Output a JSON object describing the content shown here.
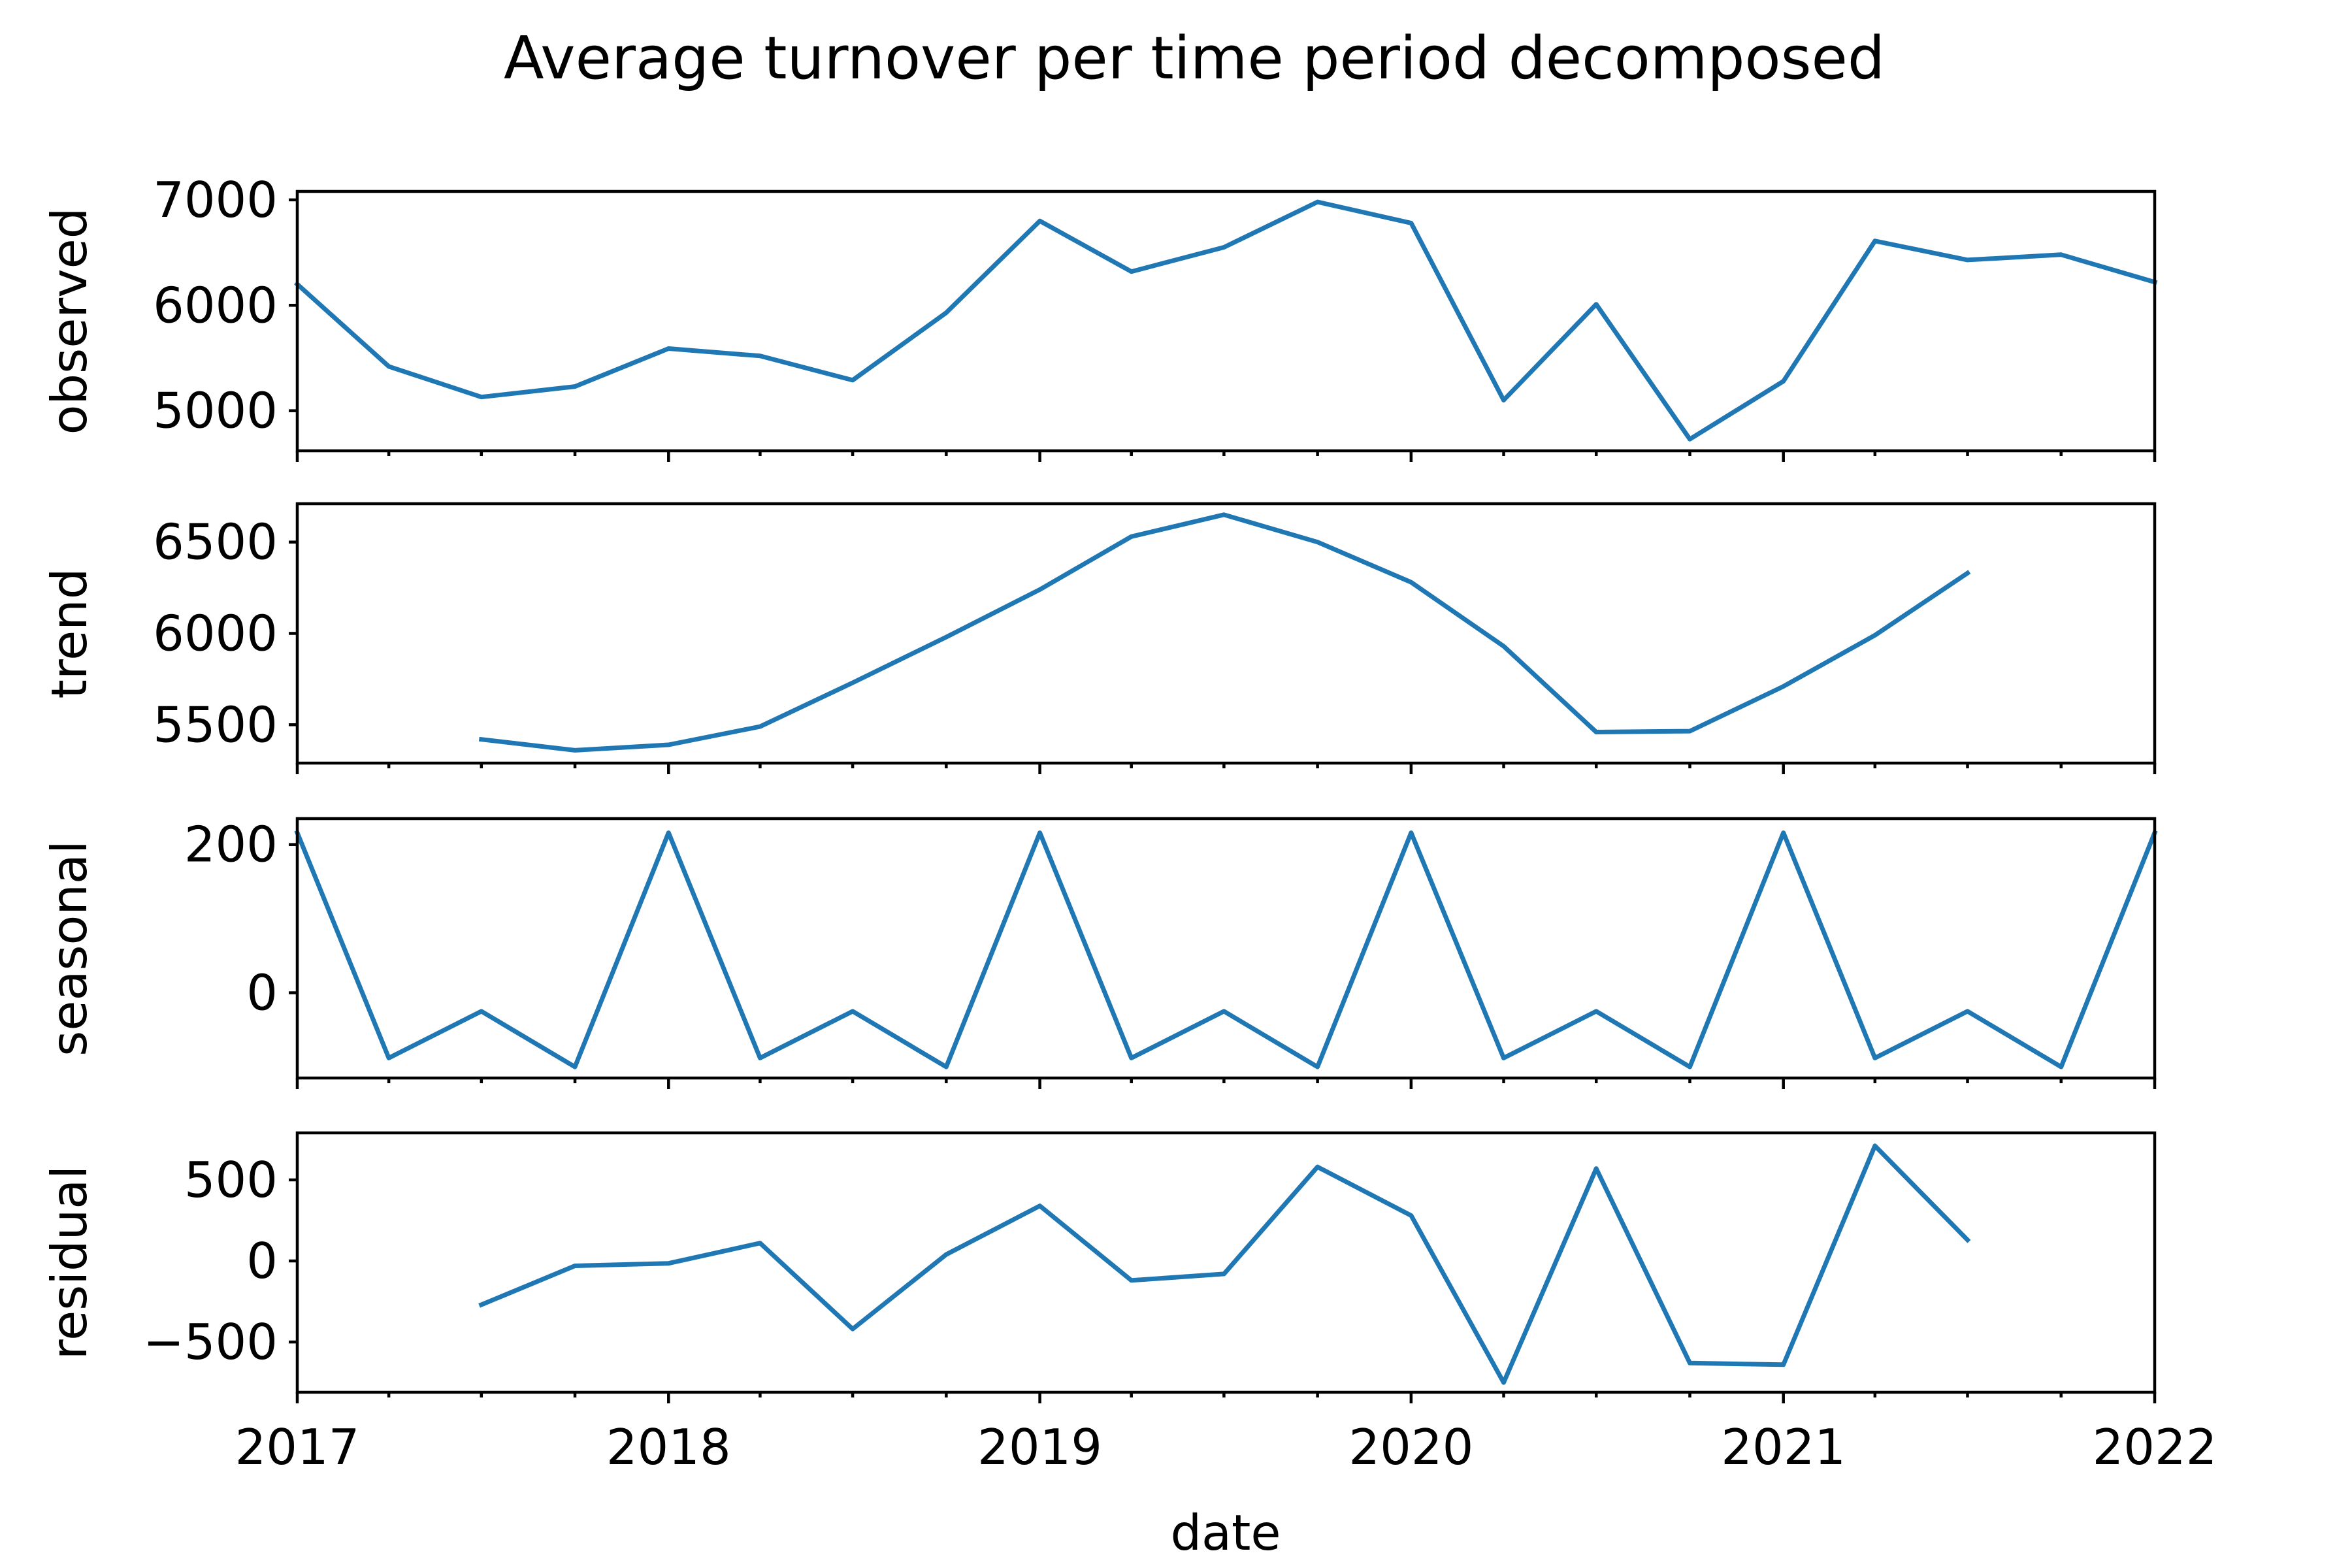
{
  "chart_data": {
    "type": "line",
    "title": "Average turnover per time period decomposed",
    "xlabel": "date",
    "x_range": [
      "2017-01-01",
      "2022-01-01"
    ],
    "x_ticks": [
      "2017",
      "2018",
      "2019",
      "2020",
      "2021",
      "2022"
    ],
    "line_color": "#1f77b4",
    "grid": false,
    "x": [
      "2017-01-01",
      "2017-04-01",
      "2017-07-01",
      "2017-10-01",
      "2018-01-01",
      "2018-04-01",
      "2018-07-01",
      "2018-10-01",
      "2019-01-01",
      "2019-04-01",
      "2019-07-01",
      "2019-10-01",
      "2020-01-01",
      "2020-04-01",
      "2020-07-01",
      "2020-10-01",
      "2021-01-01",
      "2021-04-01",
      "2021-07-01",
      "2021-10-01",
      "2022-01-01"
    ],
    "panels": [
      {
        "ylabel": "observed",
        "ylim": [
          4620,
          7080
        ],
        "yticks": [
          {
            "v": 5000,
            "t": "5000"
          },
          {
            "v": 6000,
            "t": "6000"
          },
          {
            "v": 7000,
            "t": "7000"
          }
        ],
        "values": [
          6200,
          5420,
          5130,
          5230,
          5590,
          5520,
          5290,
          5930,
          6800,
          6320,
          6550,
          6980,
          6780,
          5100,
          6010,
          4730,
          5280,
          6610,
          6430,
          6480,
          6220
        ]
      },
      {
        "ylabel": "trend",
        "ylim": [
          5290,
          6710
        ],
        "yticks": [
          {
            "v": 5500,
            "t": "5500"
          },
          {
            "v": 6000,
            "t": "6000"
          },
          {
            "v": 6500,
            "t": "6500"
          }
        ],
        "values": [
          null,
          null,
          5420,
          5360,
          5390,
          5490,
          5730,
          5980,
          6240,
          6530,
          6650,
          6500,
          6280,
          5930,
          5460,
          5465,
          5710,
          5990,
          6330,
          null,
          null
        ]
      },
      {
        "ylabel": "seasonal",
        "ylim": [
          -115,
          235
        ],
        "yticks": [
          {
            "v": 0,
            "t": "0"
          },
          {
            "v": 200,
            "t": "200"
          }
        ],
        "values": [
          216,
          -88,
          -25,
          -100,
          216,
          -88,
          -25,
          -100,
          216,
          -88,
          -25,
          -100,
          216,
          -88,
          -25,
          -100,
          216,
          -88,
          -25,
          -100,
          216
        ]
      },
      {
        "ylabel": "residual",
        "ylim": [
          -810,
          790
        ],
        "yticks": [
          {
            "v": -500,
            "t": "−500"
          },
          {
            "v": 0,
            "t": "0"
          },
          {
            "v": 500,
            "t": "500"
          }
        ],
        "values": [
          null,
          null,
          -270,
          -30,
          -15,
          110,
          -420,
          40,
          340,
          -120,
          -80,
          580,
          280,
          -750,
          570,
          -630,
          -640,
          710,
          130,
          null,
          null
        ]
      }
    ]
  }
}
